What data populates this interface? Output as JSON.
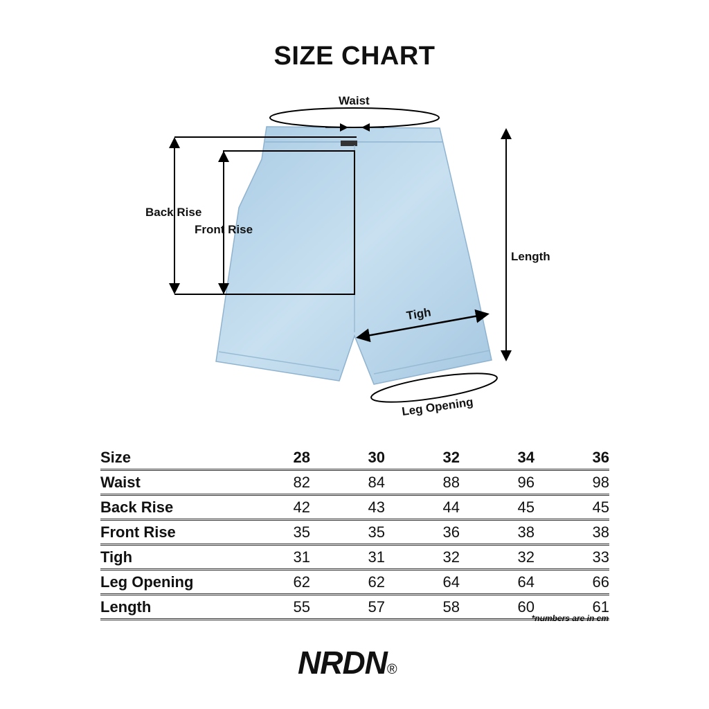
{
  "title": "SIZE CHART",
  "diagram": {
    "labels": {
      "waist": "Waist",
      "back_rise": "Back Rise",
      "front_rise": "Front Rise",
      "length": "Length",
      "tigh": "Tigh",
      "leg_opening": "Leg Opening"
    },
    "garment_color": "#b9d6ea"
  },
  "table": {
    "header": [
      "Size",
      "28",
      "30",
      "32",
      "34",
      "36"
    ],
    "rows": [
      [
        "Waist",
        "82",
        "84",
        "88",
        "96",
        "98"
      ],
      [
        "Back Rise",
        "42",
        "43",
        "44",
        "45",
        "45"
      ],
      [
        "Front Rise",
        "35",
        "35",
        "36",
        "38",
        "38"
      ],
      [
        "Tigh",
        "31",
        "31",
        "32",
        "32",
        "33"
      ],
      [
        "Leg Opening",
        "62",
        "62",
        "64",
        "64",
        "66"
      ],
      [
        "Length",
        "55",
        "57",
        "58",
        "60",
        "61"
      ]
    ]
  },
  "note": "*numbers are in cm",
  "brand": {
    "name": "NRDN",
    "mark": "®"
  }
}
